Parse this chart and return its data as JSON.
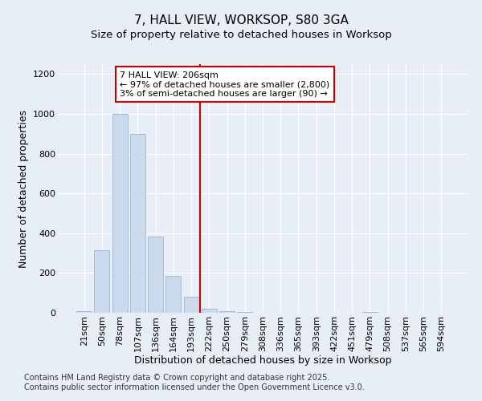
{
  "title": "7, HALL VIEW, WORKSOP, S80 3GA",
  "subtitle": "Size of property relative to detached houses in Worksop",
  "xlabel": "Distribution of detached houses by size in Worksop",
  "ylabel": "Number of detached properties",
  "categories": [
    "21sqm",
    "50sqm",
    "78sqm",
    "107sqm",
    "136sqm",
    "164sqm",
    "193sqm",
    "222sqm",
    "250sqm",
    "279sqm",
    "308sqm",
    "336sqm",
    "365sqm",
    "393sqm",
    "422sqm",
    "451sqm",
    "479sqm",
    "508sqm",
    "537sqm",
    "565sqm",
    "594sqm"
  ],
  "values": [
    8,
    315,
    1000,
    900,
    385,
    185,
    80,
    22,
    8,
    5,
    0,
    0,
    0,
    0,
    0,
    0,
    5,
    0,
    0,
    0,
    0
  ],
  "bar_color": "#ccdaee",
  "bar_edge_color": "#9ab5d0",
  "vline_x": 6.5,
  "vline_color": "#cc0000",
  "annotation_text": "7 HALL VIEW: 206sqm\n← 97% of detached houses are smaller (2,800)\n3% of semi-detached houses are larger (90) →",
  "annotation_box_color": "white",
  "annotation_box_edge_color": "#cc0000",
  "ylim": [
    0,
    1250
  ],
  "yticks": [
    0,
    200,
    400,
    600,
    800,
    1000,
    1200
  ],
  "background_color": "#e8eef8",
  "grid_color": "#ffffff",
  "footer_line1": "Contains HM Land Registry data © Crown copyright and database right 2025.",
  "footer_line2": "Contains public sector information licensed under the Open Government Licence v3.0.",
  "title_fontsize": 11,
  "subtitle_fontsize": 9.5,
  "axis_label_fontsize": 9,
  "tick_fontsize": 8,
  "annot_fontsize": 8,
  "footer_fontsize": 7
}
